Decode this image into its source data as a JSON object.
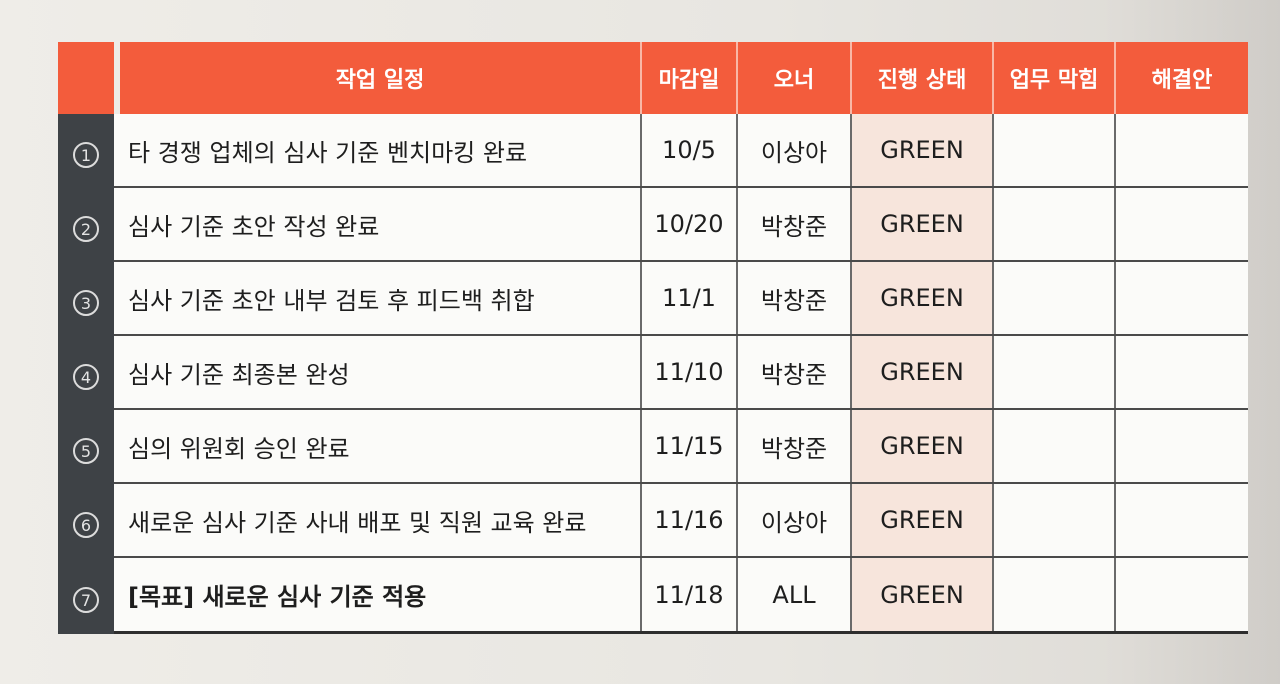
{
  "table": {
    "headers": [
      "작업 일정",
      "마감일",
      "오너",
      "진행 상태",
      "업무 막힘",
      "해결안"
    ],
    "rows": [
      {
        "num": "1",
        "task": "타 경쟁 업체의 심사 기준 벤치마킹 완료",
        "due": "10/5",
        "owner": "이상아",
        "status": "GREEN",
        "blocker": "",
        "solution": ""
      },
      {
        "num": "2",
        "task": "심사 기준 초안 작성 완료",
        "due": "10/20",
        "owner": "박창준",
        "status": "GREEN",
        "blocker": "",
        "solution": ""
      },
      {
        "num": "3",
        "task": "심사 기준 초안 내부 검토 후 피드백 취합",
        "due": "11/1",
        "owner": "박창준",
        "status": "GREEN",
        "blocker": "",
        "solution": ""
      },
      {
        "num": "4",
        "task": "심사 기준 최종본 완성",
        "due": "11/10",
        "owner": "박창준",
        "status": "GREEN",
        "blocker": "",
        "solution": ""
      },
      {
        "num": "5",
        "task": "심의 위원회 승인 완료",
        "due": "11/15",
        "owner": "박창준",
        "status": "GREEN",
        "blocker": "",
        "solution": ""
      },
      {
        "num": "6",
        "task": "새로운 심사 기준 사내 배포 및 직원 교육 완료",
        "due": "11/16",
        "owner": "이상아",
        "status": "GREEN",
        "blocker": "",
        "solution": ""
      },
      {
        "num": "7",
        "task": "[목표] 새로운 심사 기준 적용",
        "due": "11/18",
        "owner": "ALL",
        "status": "GREEN",
        "blocker": "",
        "solution": ""
      }
    ]
  },
  "colors": {
    "header": "#f35c3c",
    "left_bar": "#3e4246",
    "status_fill": "#f7e5dc"
  }
}
